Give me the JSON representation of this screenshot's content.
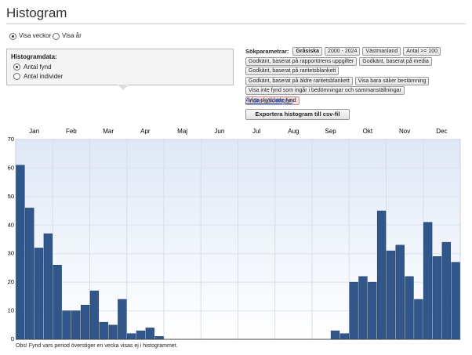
{
  "header": {
    "title": "Histogram"
  },
  "view_options": [
    {
      "label": "Visa veckor",
      "checked": true
    },
    {
      "label": "Visa år",
      "checked": false
    }
  ],
  "histogram_data": {
    "title": "Histogramdata:",
    "options": [
      {
        "label": "Antal fynd",
        "checked": true
      },
      {
        "label": "Antal individer",
        "checked": false
      }
    ]
  },
  "search": {
    "label": "Sökparametrar:",
    "filter_rows": [
      [
        "Gråsiska",
        "2000 - 2024",
        "Västmanland",
        "Antal >= 100"
      ],
      [
        "Godkänt, baserat på rapportörens uppgifter",
        "Godkänt, baserat på media"
      ],
      [
        "Godkänt, baserat på raritetsblankett"
      ],
      [
        "Godkänt, baserat på äldre raritetsblankett",
        "Visa bara säker bestämning"
      ],
      [
        "Visa inte fynd som ingår i bedömningar och sammanställningar"
      ],
      [
        "Visa skyddade fynd"
      ]
    ],
    "edit_link": "Ändra sökningen",
    "export_button": "Exportera histogram till csv-fil"
  },
  "chart_data": {
    "type": "bar",
    "months": [
      "Jan",
      "Feb",
      "Mar",
      "Apr",
      "Maj",
      "Jun",
      "Jul",
      "Aug",
      "Sep",
      "Okt",
      "Nov",
      "Dec"
    ],
    "categories": [
      null,
      null,
      null,
      null,
      null,
      null,
      null,
      null,
      null,
      null,
      null,
      null,
      null,
      null,
      null,
      null,
      null,
      null,
      null,
      null,
      null,
      null,
      null,
      null,
      null,
      null,
      null,
      null,
      null,
      null,
      null,
      null,
      null,
      null,
      null,
      null,
      null,
      null,
      null,
      null,
      null,
      null,
      null,
      null,
      null,
      null,
      null,
      null
    ],
    "values": [
      61,
      46,
      32,
      37,
      26,
      10,
      10,
      12,
      17,
      6,
      5,
      14,
      2,
      3,
      4,
      1,
      0,
      0,
      0,
      0,
      0,
      0,
      0,
      0,
      0,
      0,
      0,
      0,
      0,
      0,
      0,
      0,
      0,
      0,
      3,
      2,
      20,
      22,
      20,
      45,
      31,
      33,
      22,
      14,
      41,
      29,
      34,
      27
    ],
    "color": "#30568a",
    "ylim": [
      0,
      70
    ],
    "yticks": [
      0,
      10,
      20,
      30,
      40,
      50,
      60,
      70
    ],
    "grid": true
  },
  "footnote": "Obs! Fynd vars period överstiger en vecka visas ej i histogrammet."
}
